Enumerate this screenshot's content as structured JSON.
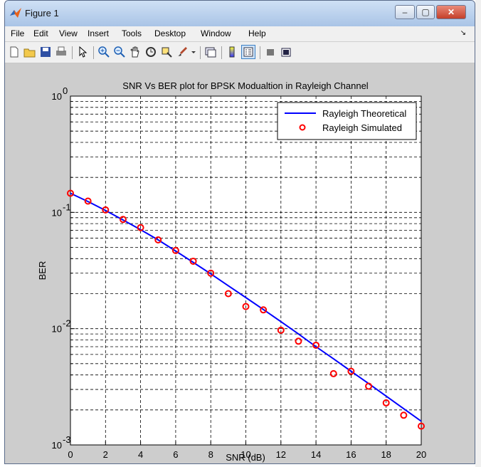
{
  "window": {
    "title": "Figure 1",
    "controls": {
      "minimize": "–",
      "maximize": "▢",
      "close": "✕"
    }
  },
  "menu": {
    "items": [
      "File",
      "Edit",
      "View",
      "Insert",
      "Tools",
      "Desktop",
      "Window",
      "Help"
    ],
    "dock_arrow": "↘"
  },
  "toolbar": {
    "icons": [
      "new-figure-icon",
      "open-file-icon",
      "save-icon",
      "print-icon",
      "arrow-pointer-icon",
      "zoom-in-icon",
      "zoom-out-icon",
      "pan-hand-icon",
      "rotate-3d-icon",
      "data-cursor-icon",
      "brush-icon",
      "link-plot-icon",
      "colorbar-icon",
      "legend-icon",
      "hide-plot-tools-icon",
      "show-plot-tools-icon"
    ]
  },
  "colors": {
    "theory_line": "#0000ff",
    "sim_marker": "#ff0000",
    "grid": "#000000",
    "figure_bg": "#cdcdcd"
  },
  "chart_data": {
    "type": "line",
    "title": "SNR Vs BER plot for BPSK Modualtion in Rayleigh Channel",
    "xlabel": "SNR (dB)",
    "ylabel": "BER",
    "xlim": [
      0,
      20
    ],
    "ylim": [
      0.001,
      1
    ],
    "yscale": "log",
    "xticks": [
      "0",
      "2",
      "4",
      "6",
      "8",
      "10",
      "12",
      "14",
      "16",
      "18",
      "20"
    ],
    "yticks": [
      {
        "base": "10",
        "exp": "0",
        "value": 1
      },
      {
        "base": "10",
        "exp": "-1",
        "value": 0.1
      },
      {
        "base": "10",
        "exp": "-2",
        "value": 0.01
      },
      {
        "base": "10",
        "exp": "-3",
        "value": 0.001
      }
    ],
    "grid": true,
    "legend_position": "top-right",
    "x": [
      0,
      1,
      2,
      3,
      4,
      5,
      6,
      7,
      8,
      9,
      10,
      11,
      12,
      13,
      14,
      15,
      16,
      17,
      18,
      19,
      20
    ],
    "series": [
      {
        "name": "Rayleigh Theoretical",
        "style": "line",
        "values": [
          0.146,
          0.124,
          0.104,
          0.086,
          0.071,
          0.058,
          0.0465,
          0.0372,
          0.0296,
          0.0234,
          0.0185,
          0.0146,
          0.0115,
          0.009,
          0.007,
          0.0055,
          0.0043,
          0.00337,
          0.00263,
          0.00205,
          0.0016
        ]
      },
      {
        "name": "Rayleigh Simulated",
        "style": "marker",
        "values": [
          0.146,
          0.125,
          0.105,
          0.087,
          0.074,
          0.058,
          0.047,
          0.038,
          0.03,
          0.02,
          0.0155,
          0.0145,
          0.0097,
          0.0078,
          0.0072,
          0.0041,
          0.0043,
          0.0032,
          0.0023,
          0.0018,
          0.00145
        ]
      }
    ]
  }
}
